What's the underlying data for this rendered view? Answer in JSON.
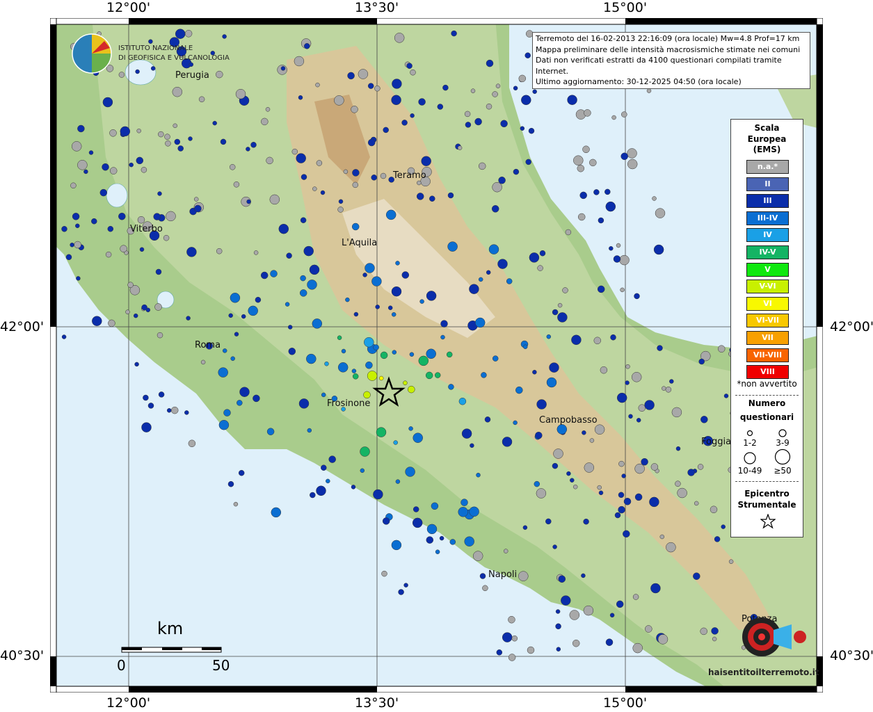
{
  "coords": {
    "top": [
      "12°00'",
      "13°30'",
      "15°00'"
    ],
    "bottom": [
      "12°00'",
      "13°30'",
      "15°00'"
    ],
    "left": [
      "42°00'",
      "40°30'"
    ],
    "right": [
      "42°00'",
      "40°30'"
    ]
  },
  "logo": {
    "line1": "ISTITUTO NAZIONALE",
    "line2": "DI GEOFISICA E VULCANOLOGIA"
  },
  "info": {
    "line1": "Terremoto del 16-02-2013 22:16:09 (ora locale) Mw=4.8 Prof=17 km",
    "line2": "Mappa preliminare delle intensità macrosismiche stimate nei comuni",
    "line3": "Dati non verificati estratti da 4100 questionari compilati tramite Internet.",
    "line4": "Ultimo aggiornamento: 30-12-2025 04:50 (ora locale)"
  },
  "cities": [
    "Perugia",
    "Teramo",
    "Viterbo",
    "L'Aquila",
    "Roma",
    "Frosinone",
    "Campobasso",
    "Foggia",
    "Napoli",
    "Potenza"
  ],
  "legend": {
    "title1": "Scala",
    "title2": "Europea",
    "title3": "(EMS)",
    "scale": [
      {
        "label": "n.a.*",
        "color": "#a8a8a8"
      },
      {
        "label": "II",
        "color": "#4a64b4"
      },
      {
        "label": "III",
        "color": "#0a2daa"
      },
      {
        "label": "III-IV",
        "color": "#0a6ed2"
      },
      {
        "label": "IV",
        "color": "#1aa0e6"
      },
      {
        "label": "IV-V",
        "color": "#14b464"
      },
      {
        "label": "V",
        "color": "#10e810"
      },
      {
        "label": "V-VI",
        "color": "#c8f000"
      },
      {
        "label": "VI",
        "color": "#f8f800"
      },
      {
        "label": "VI-VII",
        "color": "#f8c800"
      },
      {
        "label": "VII",
        "color": "#f8a000"
      },
      {
        "label": "VII-VIII",
        "color": "#f86400"
      },
      {
        "label": "VIII",
        "color": "#f00000"
      }
    ],
    "note": "*non avvertito",
    "count_title1": "Numero",
    "count_title2": "questionari",
    "sizes": [
      "1-2",
      "3-9",
      "10-49",
      "≥50"
    ],
    "epi_title1": "Epicentro",
    "epi_title2": "Strumentale"
  },
  "scalebar": {
    "unit": "km",
    "start": "0",
    "end": "50"
  },
  "brand": {
    "text": "haisentitoilterremoto.it"
  }
}
